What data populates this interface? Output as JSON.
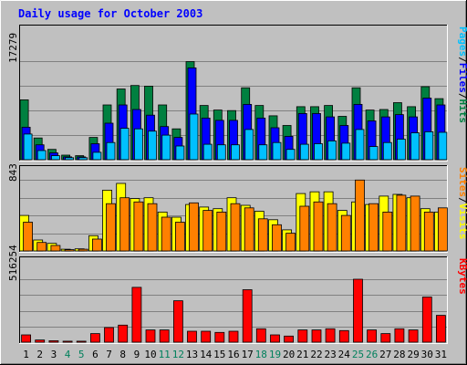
{
  "chart_data": [
    {
      "type": "bar",
      "title": "Daily usage for October 2003",
      "categories": [
        "1",
        "2",
        "3",
        "4",
        "5",
        "6",
        "7",
        "8",
        "9",
        "10",
        "11",
        "12",
        "13",
        "14",
        "15",
        "16",
        "17",
        "18",
        "19",
        "20",
        "21",
        "22",
        "23",
        "24",
        "25",
        "26",
        "27",
        "28",
        "29",
        "30",
        "31"
      ],
      "weekend_days": [
        "4",
        "5",
        "11",
        "12",
        "18",
        "19",
        "25",
        "26"
      ],
      "ylabel_parts": [
        "Pages",
        "Files",
        "Hits"
      ],
      "ymax_label": "17279",
      "ylim": [
        0,
        17279
      ],
      "series": [
        {
          "name": "Hits",
          "color": "#008040",
          "values": [
            10500,
            3800,
            1800,
            800,
            700,
            3900,
            9600,
            12400,
            13000,
            12900,
            9600,
            5400,
            17200,
            9500,
            8700,
            8600,
            12600,
            9500,
            7700,
            6000,
            9300,
            9300,
            9500,
            7600,
            12600,
            8700,
            8800,
            10000,
            9300,
            12800,
            10700
          ]
        },
        {
          "name": "Files",
          "color": "#0000ff",
          "values": [
            5700,
            2600,
            1200,
            500,
            500,
            2800,
            6400,
            9600,
            8800,
            7800,
            5800,
            3900,
            16100,
            7300,
            6900,
            6900,
            9700,
            7300,
            5600,
            4100,
            8100,
            8100,
            7500,
            6000,
            9700,
            6800,
            7500,
            7900,
            7500,
            10800,
            9600
          ]
        },
        {
          "name": "Pages",
          "color": "#00c0ff",
          "values": [
            4500,
            1600,
            700,
            350,
            350,
            1300,
            3000,
            5500,
            5400,
            5000,
            4300,
            2400,
            8000,
            2700,
            2600,
            2600,
            5300,
            2600,
            3000,
            1800,
            2700,
            2800,
            3300,
            2900,
            5300,
            2300,
            3000,
            3600,
            4700,
            4900,
            4800
          ]
        }
      ]
    },
    {
      "type": "bar",
      "ylabel_parts": [
        "Sites",
        "Visits"
      ],
      "ymax_label": "843",
      "ylim": [
        0,
        843
      ],
      "series": [
        {
          "name": "Visits",
          "color": "#ffff00",
          "values": [
            420,
            130,
            90,
            20,
            25,
            180,
            720,
            800,
            620,
            630,
            460,
            400,
            550,
            520,
            500,
            630,
            540,
            470,
            370,
            250,
            680,
            700,
            700,
            480,
            580,
            550,
            650,
            670,
            630,
            500,
            460
          ]
        },
        {
          "name": "Sites",
          "color": "#ff8000",
          "values": [
            340,
            100,
            65,
            15,
            20,
            140,
            560,
            630,
            580,
            560,
            400,
            340,
            570,
            480,
            460,
            560,
            510,
            380,
            310,
            210,
            530,
            580,
            560,
            420,
            840,
            560,
            460,
            660,
            650,
            460,
            510
          ]
        }
      ]
    },
    {
      "type": "bar",
      "ylabel_parts": [
        "KBytes"
      ],
      "ymax_label": "516254",
      "ylim": [
        0,
        516254
      ],
      "series": [
        {
          "name": "KBytes",
          "color": "#ff0000",
          "values": [
            60000,
            18000,
            12000,
            8000,
            8000,
            70000,
            120000,
            140000,
            450000,
            100000,
            100000,
            340000,
            90000,
            90000,
            80000,
            90000,
            430000,
            110000,
            60000,
            50000,
            100000,
            100000,
            110000,
            95000,
            516000,
            100000,
            70000,
            110000,
            100000,
            370000,
            220000
          ]
        }
      ]
    }
  ],
  "colors": {
    "page_bg": "#c0c0c0",
    "plot_bg": "#c0c0c0",
    "title": "#0000ff",
    "weekday": "#000000",
    "weekend": "#00805c"
  }
}
